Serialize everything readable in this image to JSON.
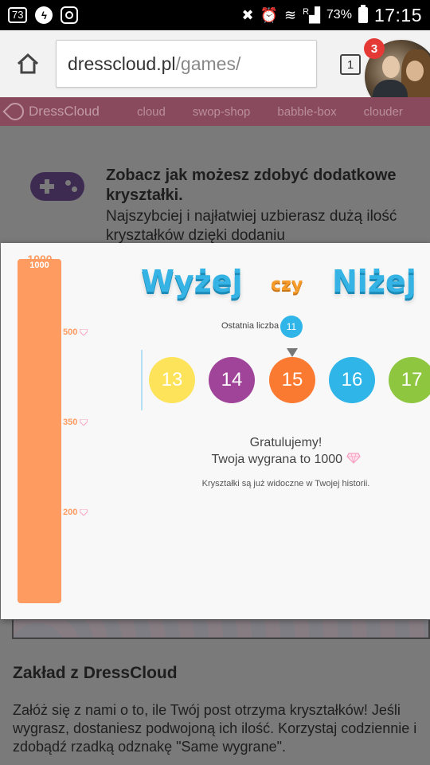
{
  "status_bar": {
    "badge": "73",
    "battery": "73%",
    "time": "17:15",
    "signal_letter": "R"
  },
  "browser": {
    "url_domain": "dresscloud.pl",
    "url_path": "/games/",
    "tab_count": "1",
    "notification_count": "3"
  },
  "site_nav": {
    "logo": "DressCloud",
    "items": [
      "cloud",
      "swop-shop",
      "babble-box",
      "clouder"
    ]
  },
  "intro": {
    "title": "Zobacz jak możesz zdobyć dodatkowe kryształki.",
    "text": "Najszybciej i najłatwiej uzbierasz dużą ilość kryształków dzięki dodaniu"
  },
  "game": {
    "title_word1": "Wyżej",
    "title_word2": "czy",
    "title_word3": "Niżej",
    "meter_top": "1000",
    "meter_max": "1000",
    "meter_levels": [
      "500",
      "350",
      "200"
    ],
    "last_label": "Ostatnia liczba",
    "last_number": "11",
    "balls": [
      {
        "value": "13",
        "color": "#fde35a"
      },
      {
        "value": "14",
        "color": "#a0449a"
      },
      {
        "value": "15",
        "color": "#fb7a32"
      },
      {
        "value": "16",
        "color": "#2fb5e8"
      },
      {
        "value": "17",
        "color": "#8ec63f"
      }
    ],
    "congrats_line1": "Gratulujemy!",
    "congrats_line2": "Twoja wygrana to 1000",
    "note": "Kryształki są już widoczne w Twojej historii."
  },
  "section": {
    "title": "Zakład z DressCloud",
    "text": "Załóż się z nami o to, ile Twój post otrzyma kryształków! Jeśli wygrasz, dostaniesz podwojoną ich ilość. Korzystaj codziennie i zdobądź rzadką odznakę \"Same wygrane\"."
  },
  "colors": {
    "accent_orange": "#fd9b61",
    "accent_blue": "#34b3e4",
    "nav_bg": "#8a4a5e"
  }
}
